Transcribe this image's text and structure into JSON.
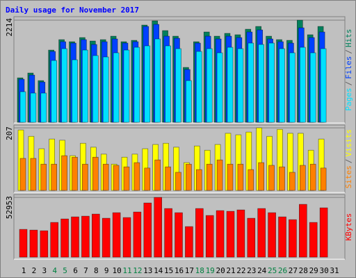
{
  "title": "Daily usage for November 2017",
  "chart_data": [
    {
      "type": "bar",
      "ylim": [
        0,
        2214
      ],
      "yticks": [
        2214
      ],
      "legend_separator": "/",
      "series": [
        {
          "name": "Hits",
          "color": "#00805c",
          "values": [
            964,
            1069,
            904,
            1566,
            1792,
            1747,
            1837,
            1762,
            1792,
            1867,
            1747,
            1777,
            2108,
            2199,
            1988,
            1867,
            1190,
            1747,
            1958,
            1867,
            1928,
            1898,
            2018,
            2078,
            1867,
            1792,
            1777,
            2214,
            1898,
            2078,
            0
          ]
        },
        {
          "name": "Files",
          "color": "#0040ff",
          "values": [
            934,
            1024,
            873,
            1536,
            1747,
            1717,
            1792,
            1687,
            1747,
            1807,
            1717,
            1747,
            2078,
            2123,
            1867,
            1822,
            1145,
            1717,
            1867,
            1807,
            1867,
            1837,
            1958,
            2003,
            1807,
            1747,
            1717,
            2048,
            1837,
            1958,
            0
          ]
        },
        {
          "name": "Pages",
          "color": "#00e0ff",
          "values": [
            663,
            633,
            633,
            1340,
            1596,
            1355,
            1566,
            1446,
            1416,
            1506,
            1566,
            1626,
            1657,
            1807,
            1657,
            1596,
            904,
            1536,
            1596,
            1506,
            1626,
            1596,
            1717,
            1687,
            1717,
            1596,
            1506,
            1626,
            1506,
            1596,
            0
          ]
        }
      ]
    },
    {
      "type": "bar",
      "ylim": [
        0,
        207
      ],
      "yticks": [
        207
      ],
      "legend_separator": "/",
      "series": [
        {
          "name": "Visits",
          "color": "#ffff00",
          "values": [
            200,
            179,
            138,
            170,
            166,
            115,
            156,
            143,
            120,
            87,
            110,
            120,
            138,
            152,
            156,
            143,
            92,
            147,
            133,
            152,
            189,
            184,
            193,
            207,
            179,
            202,
            189,
            189,
            133,
            170,
            0
          ]
        },
        {
          "name": "Sites",
          "color": "#ff8000",
          "values": [
            106,
            106,
            87,
            87,
            115,
            110,
            87,
            110,
            87,
            83,
            78,
            92,
            74,
            101,
            78,
            60,
            87,
            69,
            87,
            101,
            87,
            87,
            69,
            92,
            83,
            78,
            60,
            83,
            87,
            74,
            0
          ]
        }
      ]
    },
    {
      "type": "bar",
      "ylim": [
        0,
        52953
      ],
      "yticks": [
        52953
      ],
      "categories": [
        "1",
        "2",
        "3",
        "4",
        "5",
        "6",
        "7",
        "8",
        "9",
        "10",
        "11",
        "12",
        "13",
        "14",
        "15",
        "16",
        "17",
        "18",
        "19",
        "20",
        "21",
        "22",
        "23",
        "24",
        "25",
        "26",
        "27",
        "28",
        "29",
        "30",
        "31"
      ],
      "category_colors": [
        "#000000",
        "#000000",
        "#000000",
        "#008040",
        "#008040",
        "#000000",
        "#000000",
        "#000000",
        "#000000",
        "#000000",
        "#008040",
        "#008040",
        "#000000",
        "#000000",
        "#000000",
        "#000000",
        "#000000",
        "#008040",
        "#008040",
        "#000000",
        "#000000",
        "#000000",
        "#000000",
        "#000000",
        "#008040",
        "#008040",
        "#000000",
        "#000000",
        "#000000",
        "#000000",
        "#000000"
      ],
      "series": [
        {
          "name": "KBytes",
          "color": "#ff0000",
          "values": [
            24628,
            24012,
            23397,
            30785,
            33864,
            35711,
            36326,
            38173,
            34479,
            39405,
            35095,
            40021,
            48025,
            52953,
            43099,
            39405,
            27091,
            43099,
            36942,
            41252,
            40636,
            41868,
            34479,
            43099,
            39405,
            35711,
            33248,
            46793,
            30785,
            43715,
            0
          ]
        }
      ]
    }
  ]
}
